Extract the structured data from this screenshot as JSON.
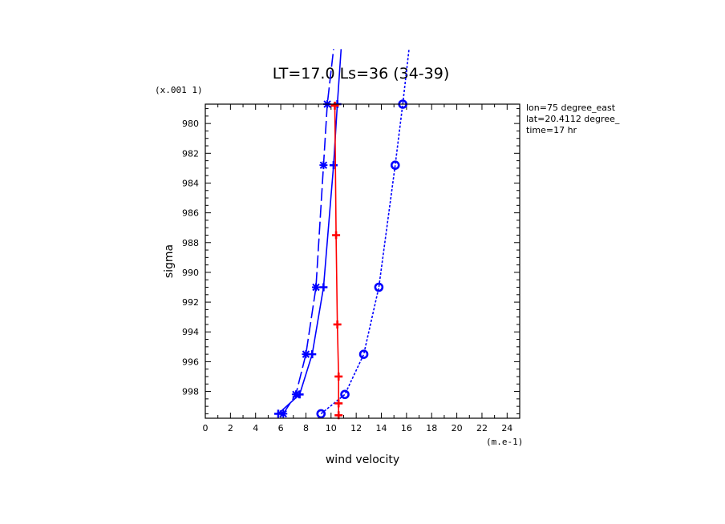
{
  "chart_data": {
    "type": "line",
    "title": "LT=17.0  Ls=36 (34-39)",
    "xlabel": "wind velocity",
    "ylabel": "sigma",
    "x_unit_label": "(m.e-1)",
    "y_scale_label": "(x.001 1)",
    "xlim": [
      0,
      25
    ],
    "ylim": [
      999.8,
      978.7
    ],
    "y_inverted": true,
    "x_ticks": [
      "0",
      "2",
      "4",
      "6",
      "8",
      "10",
      "12",
      "14",
      "16",
      "18",
      "20",
      "22",
      "24"
    ],
    "y_ticks": [
      "980",
      "982",
      "984",
      "986",
      "988",
      "990",
      "992",
      "994",
      "996",
      "998"
    ],
    "info": [
      "lon=75 degree_east",
      "lat=20.4112 degree_",
      "time=17 hr"
    ],
    "series": [
      {
        "style": "long-dash",
        "color": "#0000ff",
        "marker": "x-star",
        "x": [
          6.2,
          7.2,
          8.0,
          8.8,
          9.4,
          9.7,
          10.2
        ],
        "y": [
          999.5,
          998.2,
          995.5,
          991.0,
          982.8,
          978.7,
          975.0
        ]
      },
      {
        "style": "solid",
        "color": "#0000ff",
        "marker": "plus",
        "x": [
          5.8,
          7.5,
          8.5,
          9.4,
          10.2,
          10.5,
          10.8
        ],
        "y": [
          999.5,
          998.2,
          995.5,
          991.0,
          982.8,
          978.7,
          975.0
        ]
      },
      {
        "style": "dotted",
        "color": "#0000ff",
        "marker": "circle",
        "x": [
          9.2,
          11.1,
          12.6,
          13.8,
          15.1,
          15.7,
          16.2
        ],
        "y": [
          999.5,
          998.2,
          995.5,
          991.0,
          982.8,
          978.7,
          975.0
        ]
      },
      {
        "style": "solid",
        "color": "#ff0000",
        "marker": "plus",
        "x": [
          10.6,
          10.6,
          10.6,
          10.5,
          10.4,
          10.3
        ],
        "y": [
          999.6,
          998.8,
          997.0,
          993.5,
          987.5,
          978.8
        ]
      }
    ]
  }
}
